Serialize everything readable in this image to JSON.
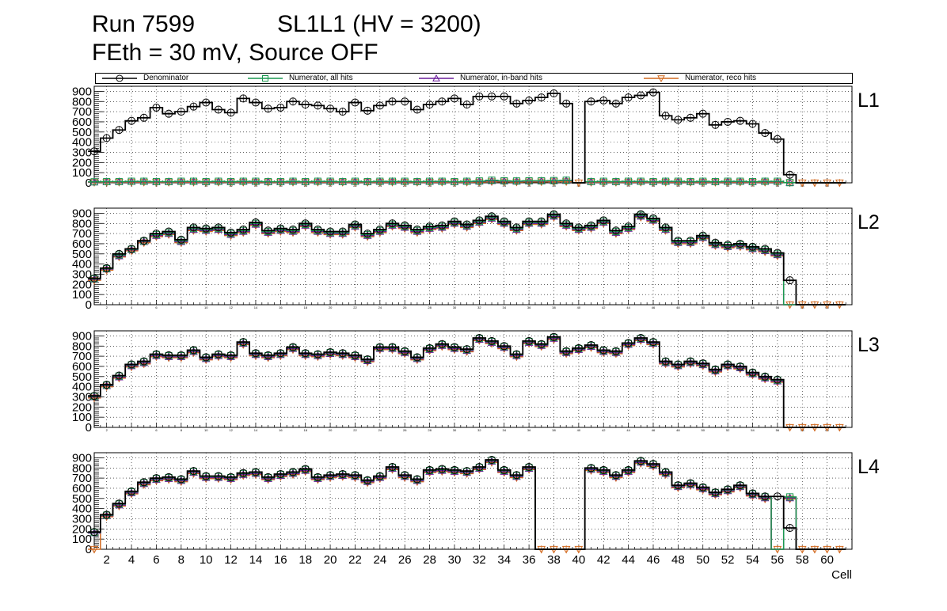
{
  "header": {
    "run": "Run 7599",
    "chamber": "SL1L1 (HV = 3200)",
    "subtitle": "FEth = 30 mV, Source OFF"
  },
  "legend": [
    {
      "label": "Denominator",
      "color": "#000000",
      "marker": "circle"
    },
    {
      "label": "Numerator, all hits",
      "color": "#1a9850",
      "marker": "square"
    },
    {
      "label": "Numerator, in-band hits",
      "color": "#6a1b9a",
      "marker": "triangle-up"
    },
    {
      "label": "Numerator, reco hits",
      "color": "#d2691e",
      "marker": "triangle-down"
    }
  ],
  "chart_data": {
    "type": "bar",
    "title": "SL1L1 (HV = 3200)",
    "xlabel": "Cell",
    "ylabel": "",
    "xlim": [
      1,
      62
    ],
    "ylim": [
      0,
      950
    ],
    "x_ticks": [
      2,
      4,
      6,
      8,
      10,
      12,
      14,
      16,
      18,
      20,
      22,
      24,
      26,
      28,
      30,
      32,
      34,
      36,
      38,
      40,
      42,
      44,
      46,
      48,
      50,
      52,
      54,
      56,
      58,
      60
    ],
    "y_ticks": [
      0,
      100,
      200,
      300,
      400,
      500,
      600,
      700,
      800,
      900
    ],
    "x": [
      1,
      2,
      3,
      4,
      5,
      6,
      7,
      8,
      9,
      10,
      11,
      12,
      13,
      14,
      15,
      16,
      17,
      18,
      19,
      20,
      21,
      22,
      23,
      24,
      25,
      26,
      27,
      28,
      29,
      30,
      31,
      32,
      33,
      34,
      35,
      36,
      37,
      38,
      39,
      40,
      41,
      42,
      43,
      44,
      45,
      46,
      47,
      48,
      49,
      50,
      51,
      52,
      53,
      54,
      55,
      56,
      57,
      58,
      59,
      60,
      61
    ],
    "panels": [
      {
        "name": "L1",
        "denominator": [
          310,
          440,
          520,
          610,
          640,
          740,
          680,
          700,
          750,
          790,
          720,
          690,
          830,
          790,
          730,
          740,
          800,
          770,
          760,
          730,
          700,
          790,
          710,
          760,
          800,
          800,
          720,
          770,
          800,
          830,
          770,
          850,
          850,
          850,
          780,
          810,
          840,
          880,
          780,
          0,
          800,
          810,
          780,
          840,
          860,
          890,
          660,
          620,
          640,
          680,
          570,
          600,
          610,
          580,
          490,
          430,
          80,
          0,
          0,
          0,
          0
        ],
        "numerator_all": [
          10,
          12,
          12,
          15,
          15,
          12,
          12,
          15,
          15,
          12,
          15,
          12,
          15,
          15,
          12,
          12,
          15,
          12,
          15,
          15,
          12,
          15,
          12,
          15,
          15,
          15,
          12,
          15,
          15,
          12,
          15,
          18,
          25,
          20,
          18,
          20,
          20,
          22,
          25,
          0,
          12,
          15,
          12,
          15,
          15,
          12,
          15,
          15,
          12,
          15,
          12,
          15,
          15,
          12,
          15,
          15,
          2,
          0,
          0,
          0,
          0
        ],
        "numerator_inband": [
          8,
          10,
          10,
          12,
          12,
          10,
          10,
          12,
          12,
          10,
          12,
          10,
          12,
          12,
          10,
          10,
          12,
          10,
          12,
          12,
          10,
          12,
          10,
          12,
          12,
          12,
          10,
          12,
          12,
          10,
          12,
          15,
          20,
          18,
          15,
          18,
          18,
          20,
          22,
          0,
          10,
          12,
          10,
          12,
          12,
          10,
          12,
          12,
          10,
          12,
          10,
          12,
          12,
          10,
          12,
          12,
          2,
          0,
          0,
          0,
          0
        ],
        "numerator_reco": [
          5,
          5,
          6,
          6,
          6,
          5,
          5,
          6,
          6,
          5,
          6,
          5,
          6,
          6,
          5,
          5,
          6,
          5,
          6,
          6,
          5,
          6,
          5,
          6,
          6,
          6,
          5,
          6,
          6,
          5,
          6,
          8,
          12,
          10,
          8,
          10,
          10,
          12,
          12,
          0,
          5,
          6,
          5,
          6,
          6,
          5,
          6,
          6,
          5,
          6,
          5,
          6,
          6,
          5,
          6,
          6,
          1,
          0,
          0,
          0,
          0
        ]
      },
      {
        "name": "L2",
        "denominator": [
          260,
          360,
          500,
          550,
          630,
          700,
          720,
          640,
          760,
          750,
          760,
          710,
          740,
          810,
          730,
          750,
          740,
          800,
          740,
          720,
          720,
          790,
          700,
          740,
          800,
          780,
          740,
          770,
          780,
          820,
          790,
          830,
          870,
          820,
          760,
          820,
          820,
          890,
          800,
          760,
          780,
          830,
          730,
          770,
          890,
          850,
          760,
          630,
          630,
          680,
          610,
          590,
          600,
          570,
          550,
          510,
          240,
          0,
          0,
          0,
          0
        ],
        "numerator_all": [
          255,
          355,
          490,
          545,
          625,
          690,
          710,
          630,
          750,
          740,
          750,
          700,
          730,
          800,
          720,
          740,
          730,
          790,
          730,
          710,
          710,
          780,
          690,
          730,
          790,
          770,
          730,
          760,
          770,
          810,
          780,
          820,
          860,
          810,
          750,
          810,
          810,
          880,
          790,
          750,
          770,
          820,
          720,
          760,
          880,
          840,
          750,
          620,
          620,
          670,
          600,
          580,
          590,
          560,
          540,
          500,
          0,
          0,
          0,
          0,
          0
        ],
        "numerator_inband": [
          250,
          350,
          480,
          540,
          620,
          680,
          700,
          620,
          740,
          730,
          740,
          690,
          720,
          790,
          710,
          730,
          720,
          780,
          720,
          700,
          700,
          770,
          680,
          720,
          780,
          760,
          720,
          750,
          760,
          800,
          770,
          810,
          850,
          800,
          740,
          800,
          800,
          870,
          780,
          740,
          760,
          810,
          710,
          750,
          870,
          830,
          740,
          610,
          610,
          660,
          590,
          570,
          580,
          550,
          530,
          490,
          0,
          0,
          0,
          0,
          0
        ],
        "numerator_reco": [
          240,
          340,
          470,
          530,
          610,
          670,
          690,
          610,
          730,
          720,
          730,
          680,
          710,
          780,
          700,
          720,
          710,
          770,
          710,
          690,
          690,
          760,
          670,
          710,
          770,
          750,
          710,
          740,
          750,
          790,
          760,
          800,
          840,
          790,
          730,
          790,
          790,
          860,
          770,
          730,
          750,
          800,
          700,
          740,
          860,
          820,
          730,
          600,
          600,
          650,
          580,
          560,
          570,
          540,
          520,
          480,
          0,
          0,
          0,
          0,
          0
        ]
      },
      {
        "name": "L3",
        "denominator": [
          310,
          420,
          510,
          620,
          650,
          720,
          710,
          710,
          760,
          690,
          720,
          710,
          840,
          730,
          710,
          730,
          790,
          730,
          720,
          740,
          730,
          710,
          670,
          790,
          790,
          750,
          690,
          780,
          820,
          790,
          770,
          880,
          850,
          800,
          720,
          850,
          820,
          890,
          750,
          780,
          810,
          760,
          750,
          830,
          880,
          840,
          650,
          620,
          650,
          630,
          570,
          620,
          600,
          540,
          500,
          470,
          0,
          0,
          0,
          0,
          0
        ],
        "numerator_all": [
          305,
          415,
          505,
          615,
          645,
          715,
          705,
          705,
          755,
          685,
          715,
          705,
          835,
          725,
          705,
          725,
          785,
          725,
          715,
          735,
          725,
          705,
          665,
          785,
          785,
          745,
          685,
          775,
          815,
          785,
          765,
          875,
          845,
          795,
          715,
          845,
          815,
          885,
          745,
          775,
          805,
          755,
          745,
          825,
          875,
          835,
          645,
          615,
          645,
          625,
          565,
          615,
          595,
          535,
          495,
          465,
          0,
          0,
          0,
          0,
          0
        ],
        "numerator_inband": [
          300,
          410,
          495,
          605,
          635,
          705,
          695,
          695,
          745,
          675,
          705,
          695,
          825,
          715,
          695,
          715,
          775,
          715,
          705,
          725,
          715,
          695,
          655,
          775,
          775,
          735,
          675,
          765,
          805,
          775,
          755,
          865,
          835,
          785,
          705,
          835,
          805,
          875,
          735,
          765,
          795,
          745,
          735,
          815,
          865,
          825,
          635,
          605,
          635,
          615,
          555,
          605,
          585,
          525,
          485,
          455,
          0,
          0,
          0,
          0,
          0
        ],
        "numerator_reco": [
          290,
          400,
          485,
          595,
          625,
          695,
          685,
          685,
          735,
          665,
          695,
          685,
          815,
          705,
          685,
          705,
          765,
          705,
          695,
          715,
          705,
          685,
          645,
          765,
          765,
          725,
          665,
          755,
          795,
          765,
          745,
          855,
          825,
          775,
          695,
          825,
          795,
          865,
          725,
          755,
          785,
          735,
          725,
          805,
          855,
          815,
          625,
          595,
          625,
          605,
          545,
          595,
          575,
          515,
          475,
          445,
          0,
          0,
          0,
          0,
          0
        ]
      },
      {
        "name": "L4",
        "denominator": [
          170,
          340,
          450,
          570,
          660,
          700,
          710,
          690,
          770,
          720,
          720,
          710,
          750,
          760,
          710,
          740,
          760,
          790,
          710,
          730,
          740,
          730,
          680,
          720,
          810,
          730,
          690,
          780,
          790,
          780,
          770,
          810,
          880,
          780,
          730,
          810,
          0,
          0,
          0,
          0,
          800,
          780,
          730,
          780,
          870,
          840,
          760,
          630,
          650,
          610,
          560,
          590,
          630,
          550,
          520,
          520,
          210,
          0,
          0,
          0,
          0
        ],
        "numerator_all": [
          165,
          335,
          445,
          565,
          655,
          695,
          705,
          685,
          765,
          715,
          715,
          705,
          745,
          755,
          705,
          735,
          755,
          785,
          705,
          725,
          735,
          725,
          675,
          715,
          805,
          725,
          685,
          775,
          785,
          775,
          765,
          805,
          875,
          775,
          725,
          805,
          0,
          0,
          0,
          0,
          795,
          775,
          725,
          775,
          865,
          835,
          755,
          625,
          645,
          605,
          555,
          585,
          625,
          545,
          515,
          0,
          515,
          0,
          0,
          0,
          0
        ],
        "numerator_inband": [
          160,
          330,
          435,
          555,
          645,
          685,
          695,
          675,
          755,
          705,
          705,
          695,
          735,
          745,
          695,
          725,
          745,
          775,
          695,
          715,
          725,
          715,
          665,
          705,
          795,
          715,
          675,
          765,
          775,
          765,
          755,
          795,
          865,
          765,
          715,
          795,
          0,
          0,
          0,
          0,
          785,
          765,
          715,
          765,
          855,
          825,
          745,
          615,
          635,
          595,
          545,
          575,
          615,
          535,
          505,
          0,
          505,
          0,
          0,
          0,
          0
        ],
        "numerator_reco": [
          0,
          320,
          425,
          545,
          635,
          675,
          685,
          665,
          745,
          695,
          695,
          685,
          725,
          735,
          685,
          715,
          735,
          765,
          685,
          705,
          715,
          705,
          655,
          695,
          785,
          705,
          665,
          755,
          765,
          755,
          745,
          785,
          855,
          755,
          705,
          785,
          0,
          0,
          0,
          0,
          775,
          755,
          705,
          755,
          845,
          815,
          735,
          605,
          625,
          585,
          535,
          565,
          605,
          525,
          495,
          0,
          495,
          0,
          0,
          0,
          0
        ]
      }
    ]
  }
}
